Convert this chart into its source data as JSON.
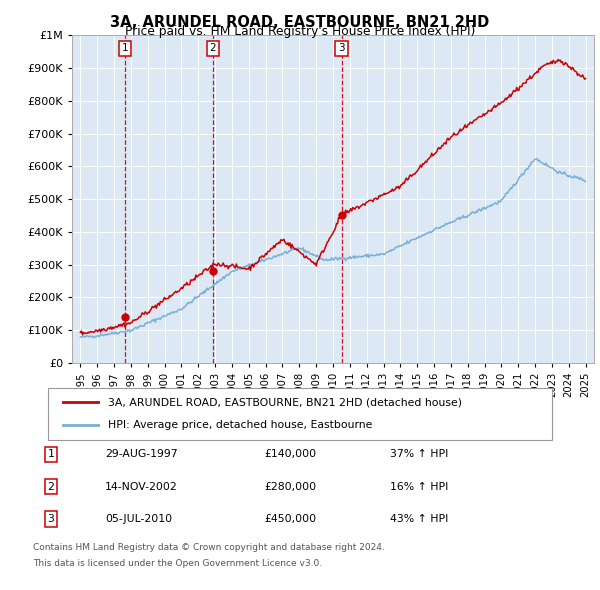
{
  "title": "3A, ARUNDEL ROAD, EASTBOURNE, BN21 2HD",
  "subtitle": "Price paid vs. HM Land Registry's House Price Index (HPI)",
  "legend_line1": "3A, ARUNDEL ROAD, EASTBOURNE, BN21 2HD (detached house)",
  "legend_line2": "HPI: Average price, detached house, Eastbourne",
  "sale_color": "#cc0000",
  "hpi_color": "#7aaed6",
  "background_plot": "#dce9f5",
  "grid_color": "#ffffff",
  "transactions": [
    {
      "label": "1",
      "date": "29-AUG-1997",
      "price": 140000,
      "price_str": "£140,000",
      "pct": "37%",
      "x_year": 1997.66
    },
    {
      "label": "2",
      "date": "14-NOV-2002",
      "price": 280000,
      "price_str": "£280,000",
      "pct": "16%",
      "x_year": 2002.87
    },
    {
      "label": "3",
      "date": "05-JUL-2010",
      "price": 450000,
      "price_str": "£450,000",
      "pct": "43%",
      "x_year": 2010.51
    }
  ],
  "footnote1": "Contains HM Land Registry data © Crown copyright and database right 2024.",
  "footnote2": "This data is licensed under the Open Government Licence v3.0.",
  "ylim": [
    0,
    1000000
  ],
  "yticks": [
    0,
    100000,
    200000,
    300000,
    400000,
    500000,
    600000,
    700000,
    800000,
    900000,
    1000000
  ],
  "ytick_labels": [
    "£0",
    "£100K",
    "£200K",
    "£300K",
    "£400K",
    "£500K",
    "£600K",
    "£700K",
    "£800K",
    "£900K",
    "£1M"
  ],
  "xlim_start": 1994.5,
  "xlim_end": 2025.5,
  "xlabel_years": [
    1995,
    1996,
    1997,
    1998,
    1999,
    2000,
    2001,
    2002,
    2003,
    2004,
    2005,
    2006,
    2007,
    2008,
    2009,
    2010,
    2011,
    2012,
    2013,
    2014,
    2015,
    2016,
    2017,
    2018,
    2019,
    2020,
    2021,
    2022,
    2023,
    2024,
    2025
  ]
}
